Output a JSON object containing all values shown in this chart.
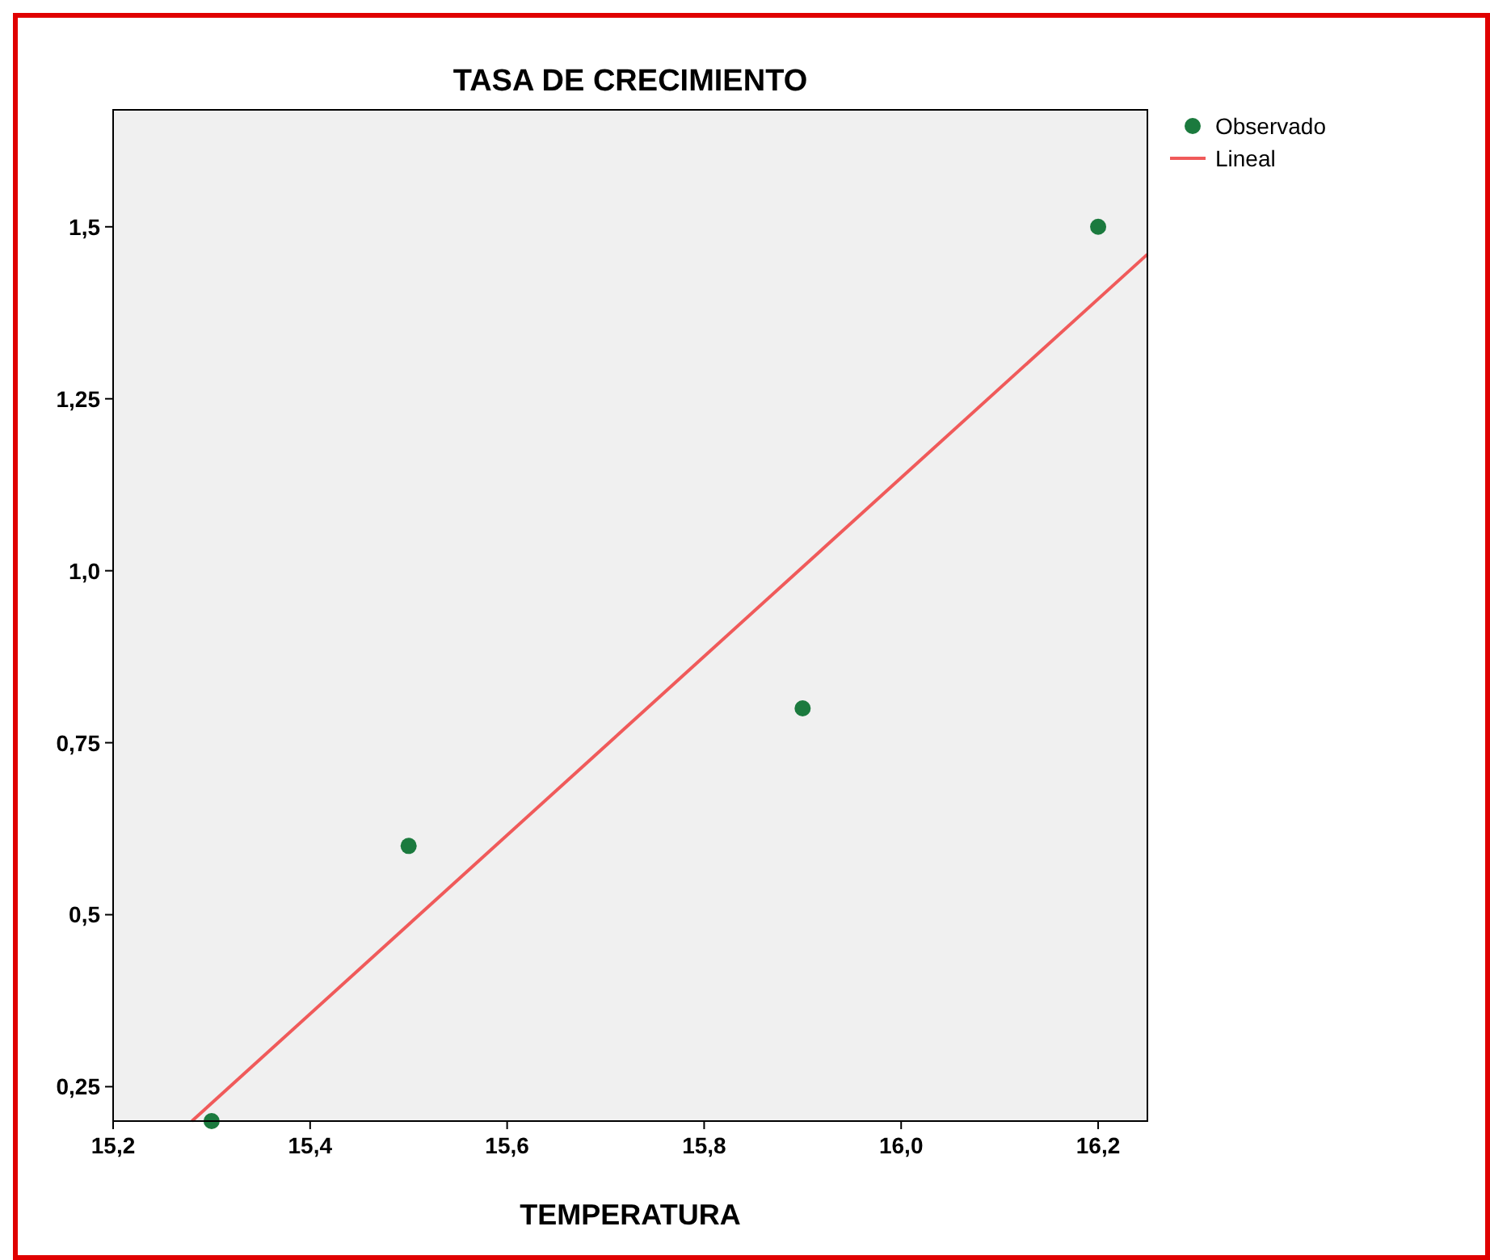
{
  "chart_data": {
    "type": "scatter",
    "title": "TASA DE CRECIMIENTO",
    "xlabel": "TEMPERATURA",
    "series": [
      {
        "name": "Observado",
        "color": "#1b7a3e",
        "marker": "circle",
        "x": [
          15.3,
          15.5,
          15.9,
          16.2
        ],
        "values": [
          0.2,
          0.6,
          0.8,
          1.5
        ]
      },
      {
        "name": "Lineal",
        "type": "line",
        "color": "#f05a5a",
        "marker": "none",
        "x": [
          15.28,
          16.25
        ],
        "values": [
          0.2,
          1.46
        ]
      }
    ],
    "xlim": [
      15.2,
      16.25
    ],
    "ylim": [
      0.2,
      1.67
    ],
    "xticks": [
      {
        "value": 15.2,
        "label": "15,2"
      },
      {
        "value": 15.4,
        "label": "15,4"
      },
      {
        "value": 15.6,
        "label": "15,6"
      },
      {
        "value": 15.8,
        "label": "15,8"
      },
      {
        "value": 16.0,
        "label": "16,0"
      },
      {
        "value": 16.2,
        "label": "16,2"
      }
    ],
    "yticks": [
      {
        "value": 0.25,
        "label": "0,25"
      },
      {
        "value": 0.5,
        "label": "0,5"
      },
      {
        "value": 0.75,
        "label": "0,75"
      },
      {
        "value": 1.0,
        "label": "1,0"
      },
      {
        "value": 1.25,
        "label": "1,25"
      },
      {
        "value": 1.5,
        "label": "1,5"
      }
    ],
    "legend": "top right",
    "grid": false
  }
}
